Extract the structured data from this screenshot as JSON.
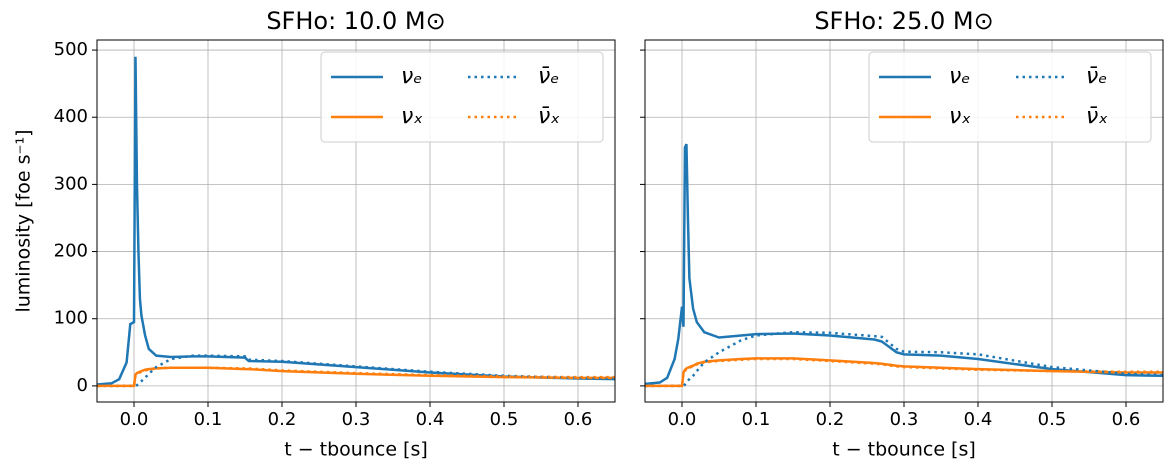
{
  "chart_data": [
    {
      "type": "line",
      "title": "SFHo: 10.0 M⊙",
      "xlabel": "t − tbounce [s]",
      "ylabel": "luminosity [foe s⁻¹]",
      "x": [
        -0.05,
        -0.03,
        -0.02,
        -0.01,
        -0.005,
        0,
        0.002,
        0.004,
        0.006,
        0.008,
        0.01,
        0.015,
        0.02,
        0.03,
        0.05,
        0.08,
        0.1,
        0.15,
        0.155,
        0.2,
        0.3,
        0.4,
        0.5,
        0.6,
        0.65
      ],
      "series": [
        {
          "name": "νₑ",
          "color": "#1f77b4",
          "linestyle": "solid",
          "values": [
            2,
            4,
            10,
            35,
            92,
            95,
            490,
            300,
            200,
            130,
            105,
            75,
            55,
            45,
            43,
            44,
            44,
            42,
            37,
            36,
            28,
            20,
            14,
            11,
            10
          ]
        },
        {
          "name": "νₓ",
          "color": "#ff7f0e",
          "linestyle": "solid",
          "values": [
            0,
            0,
            0,
            0,
            0,
            0,
            17,
            19,
            20,
            21,
            22,
            24,
            25,
            26,
            27,
            27,
            27,
            25,
            25,
            22,
            18,
            15,
            13,
            12,
            12
          ]
        },
        {
          "name": "ν̄ₑ",
          "color": "#1f77b4",
          "linestyle": "dotted",
          "values": [
            0,
            0,
            0,
            0,
            0,
            0,
            0,
            1,
            3,
            5,
            7,
            12,
            18,
            28,
            40,
            45,
            45,
            44,
            39,
            37,
            29,
            21,
            15,
            12,
            11
          ]
        },
        {
          "name": "ν̄ₓ",
          "color": "#ff7f0e",
          "linestyle": "dotted",
          "values": [
            0,
            0,
            0,
            0,
            0,
            0,
            15,
            18,
            19,
            20,
            21,
            23,
            24,
            26,
            27,
            27,
            27,
            26,
            26,
            23,
            19,
            16,
            14,
            13,
            13
          ]
        }
      ],
      "xlim": [
        -0.05,
        0.65
      ],
      "xticks": [
        {
          "value": 0,
          "label": "0.0"
        },
        0.1,
        0.2,
        0.3,
        0.4,
        0.5,
        0.6
      ],
      "ylim": [
        -24,
        515
      ],
      "yticks": [
        0,
        100,
        200,
        300,
        400,
        500
      ],
      "ytick_labels": true,
      "grid": true,
      "legend": "upper right",
      "legend_ncol": 2
    },
    {
      "type": "line",
      "title": "SFHo: 25.0 M⊙",
      "xlabel": "t − tbounce [s]",
      "x": [
        -0.05,
        -0.03,
        -0.02,
        -0.01,
        -0.005,
        0,
        0.002,
        0.004,
        0.006,
        0.008,
        0.01,
        0.015,
        0.02,
        0.03,
        0.05,
        0.08,
        0.1,
        0.15,
        0.2,
        0.26,
        0.27,
        0.29,
        0.3,
        0.35,
        0.4,
        0.5,
        0.6,
        0.65
      ],
      "series": [
        {
          "name": "νₑ",
          "color": "#1f77b4",
          "linestyle": "solid",
          "values": [
            3,
            5,
            12,
            40,
            70,
            118,
            88,
            355,
            360,
            250,
            160,
            115,
            95,
            80,
            72,
            75,
            77,
            78,
            75,
            69,
            66,
            50,
            47,
            45,
            40,
            25,
            16,
            15
          ]
        },
        {
          "name": "νₓ",
          "color": "#ff7f0e",
          "linestyle": "solid",
          "values": [
            0,
            0,
            0,
            0,
            0,
            0,
            20,
            24,
            26,
            27,
            28,
            30,
            33,
            36,
            38,
            40,
            41,
            41,
            38,
            34,
            33,
            30,
            29,
            27,
            25,
            22,
            20,
            20
          ]
        },
        {
          "name": "ν̄ₑ",
          "color": "#1f77b4",
          "linestyle": "dotted",
          "values": [
            0,
            0,
            0,
            0,
            0,
            0,
            0,
            2,
            5,
            8,
            10,
            15,
            22,
            35,
            50,
            68,
            75,
            80,
            79,
            74,
            73,
            55,
            51,
            50,
            47,
            28,
            18,
            16
          ]
        },
        {
          "name": "ν̄ₓ",
          "color": "#ff7f0e",
          "linestyle": "dotted",
          "values": [
            0,
            0,
            0,
            0,
            0,
            0,
            18,
            22,
            25,
            26,
            27,
            29,
            32,
            35,
            37,
            39,
            40,
            40,
            37,
            33,
            32,
            29,
            28,
            26,
            24,
            22,
            21,
            21
          ]
        }
      ],
      "xlim": [
        -0.05,
        0.65
      ],
      "xticks": [
        {
          "value": 0,
          "label": "0.0"
        },
        0.1,
        0.2,
        0.3,
        0.4,
        0.5,
        0.6
      ],
      "ylim": [
        -24,
        515
      ],
      "yticks": [
        0,
        100,
        200,
        300,
        400,
        500
      ],
      "ytick_labels": false,
      "grid": true,
      "legend": "upper right",
      "legend_ncol": 2
    }
  ]
}
